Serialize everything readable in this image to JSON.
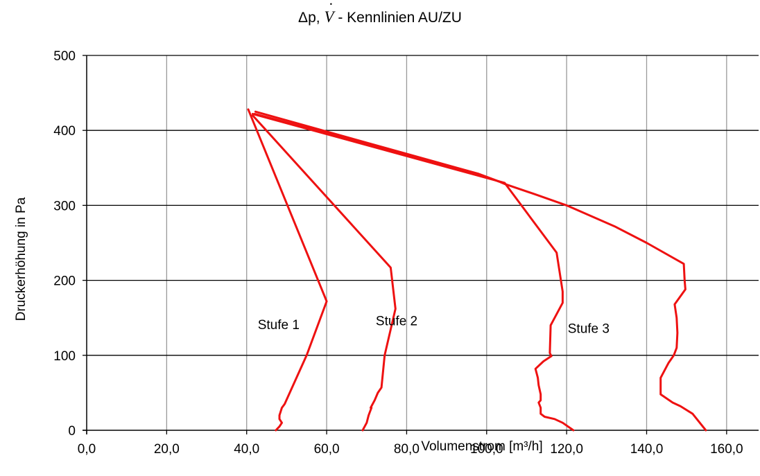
{
  "chart_data": {
    "type": "line",
    "title_prefix": "Δp,",
    "title_symbol": "V",
    "title_suffix": "- Kennlinien AU/ZU",
    "xlabel": "Volumenstrom [m³/h]",
    "ylabel": "Druckerhöhung in Pa",
    "xlim": [
      0,
      168
    ],
    "ylim": [
      0,
      500
    ],
    "x_ticks": [
      "0,0",
      "20,0",
      "40,0",
      "60,0",
      "80,0",
      "100,0",
      "120,0",
      "140,0",
      "160,0"
    ],
    "x_tick_values": [
      0,
      20,
      40,
      60,
      80,
      100,
      120,
      140,
      160
    ],
    "y_ticks": [
      "0",
      "100",
      "200",
      "300",
      "400",
      "500"
    ],
    "y_tick_values": [
      0,
      100,
      200,
      300,
      400,
      500
    ],
    "grid": true,
    "line_color": "#ee1111",
    "annotations": [
      {
        "text": "Stufe 1",
        "x": 48,
        "y": 135
      },
      {
        "text": "Stufe 2",
        "x": 77.5,
        "y": 140
      },
      {
        "text": "Stufe 3",
        "x": 125.5,
        "y": 130
      }
    ],
    "series": [
      {
        "values": [
          [
            47.3,
            0
          ],
          [
            48.2,
            5
          ],
          [
            48.8,
            10
          ],
          [
            48.2,
            15
          ],
          [
            48.2,
            20
          ],
          [
            48.8,
            30
          ],
          [
            49.5,
            35
          ],
          [
            55,
            100
          ],
          [
            60,
            172
          ],
          [
            40.4,
            428
          ]
        ]
      },
      {
        "values": [
          [
            69,
            0
          ],
          [
            69.5,
            5
          ],
          [
            70,
            10
          ],
          [
            70.5,
            20
          ],
          [
            71.2,
            30
          ],
          [
            71,
            30
          ],
          [
            72,
            40
          ],
          [
            72.8,
            50
          ],
          [
            73.7,
            57
          ],
          [
            74.5,
            100
          ],
          [
            77.2,
            162
          ],
          [
            76,
            217
          ],
          [
            41.5,
            420
          ]
        ]
      },
      {
        "values": [
          [
            121.7,
            0
          ],
          [
            119,
            10
          ],
          [
            117,
            15
          ],
          [
            114.5,
            18
          ],
          [
            113.5,
            22
          ],
          [
            113.5,
            30
          ],
          [
            113,
            37
          ],
          [
            113.5,
            40
          ],
          [
            113.5,
            48
          ],
          [
            113,
            60
          ],
          [
            112.8,
            70
          ],
          [
            112.2,
            82
          ],
          [
            114.2,
            92
          ],
          [
            116.2,
            99
          ],
          [
            115.8,
            103
          ],
          [
            116,
            140
          ],
          [
            116.5,
            145
          ],
          [
            119,
            170
          ],
          [
            119,
            185
          ],
          [
            117.5,
            237
          ],
          [
            104.5,
            330
          ],
          [
            41.5,
            422
          ]
        ]
      },
      {
        "values": [
          [
            154.8,
            0
          ],
          [
            151.5,
            22
          ],
          [
            148.5,
            32
          ],
          [
            146.5,
            37
          ],
          [
            143.5,
            48
          ],
          [
            143.5,
            53
          ],
          [
            143.5,
            62
          ],
          [
            143.5,
            70
          ],
          [
            145.5,
            90
          ],
          [
            146.8,
            100
          ],
          [
            147.5,
            110
          ],
          [
            147.7,
            130
          ],
          [
            147.5,
            150
          ],
          [
            147,
            168
          ],
          [
            149.7,
            188
          ],
          [
            149.5,
            200
          ],
          [
            149.3,
            222
          ],
          [
            140,
            250
          ],
          [
            132,
            272
          ],
          [
            120,
            300
          ],
          [
            112,
            315
          ],
          [
            104.8,
            328
          ],
          [
            103,
            332
          ],
          [
            98,
            342
          ],
          [
            42.2,
            425
          ]
        ]
      },
      {
        "values": [
          [
            104.8,
            328
          ],
          [
            103,
            332
          ],
          [
            98,
            342
          ],
          [
            42,
            422
          ]
        ]
      }
    ]
  }
}
